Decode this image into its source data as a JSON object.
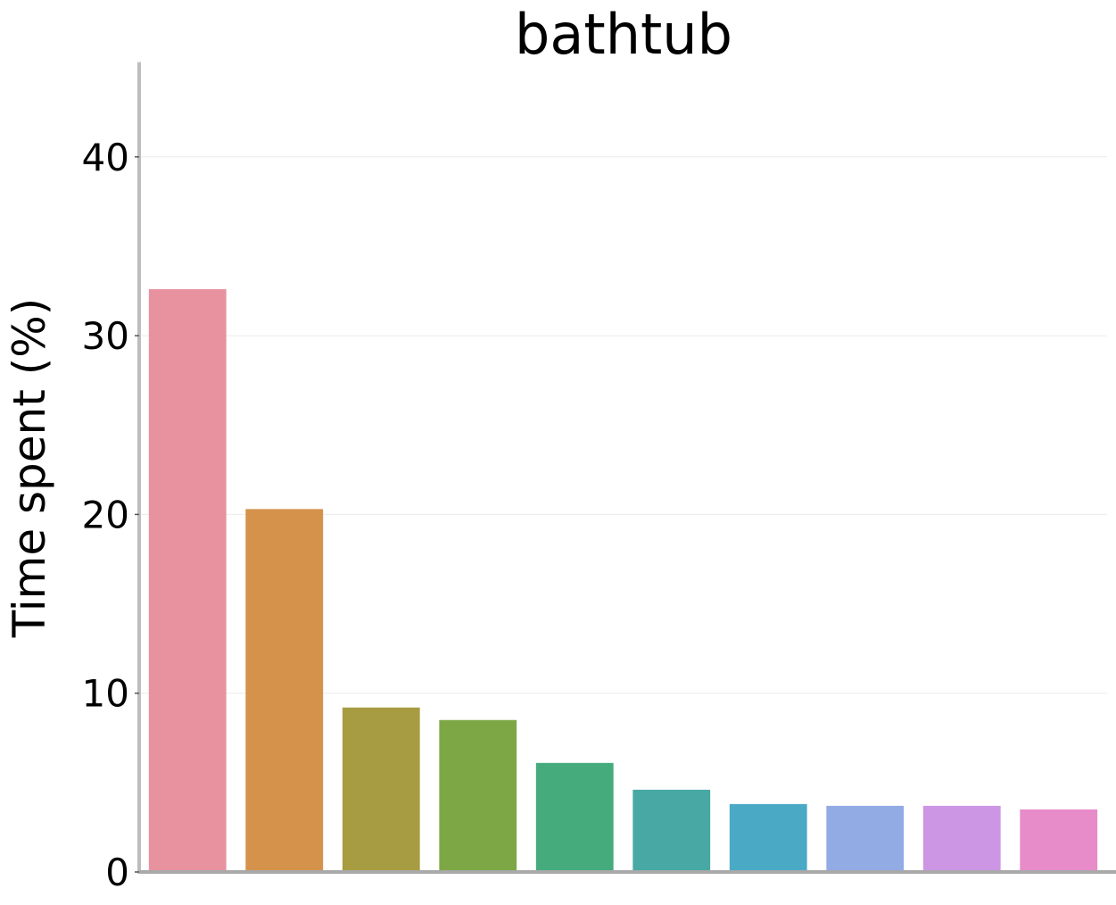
{
  "chart_data": {
    "type": "bar",
    "title": "bathtub",
    "xlabel": "",
    "ylabel": "Time spent (%)",
    "ylim": [
      0,
      45.3
    ],
    "yticks": [
      0,
      10,
      20,
      30,
      40
    ],
    "ytick_labels": [
      "0",
      "10",
      "20",
      "30",
      "40"
    ],
    "grid": "horizontal",
    "legend": "none",
    "categories": [
      "",
      "",
      "",
      "",
      "",
      "",
      "",
      "",
      "",
      ""
    ],
    "values": [
      32.6,
      20.3,
      9.2,
      8.5,
      6.1,
      4.6,
      3.8,
      3.7,
      3.7,
      3.5
    ],
    "colors": [
      "#e8929f",
      "#d4924b",
      "#a79c42",
      "#7da745",
      "#45ab7c",
      "#47a8a4",
      "#4aaac5",
      "#92abe4",
      "#cc96e4",
      "#e88bc9"
    ]
  }
}
